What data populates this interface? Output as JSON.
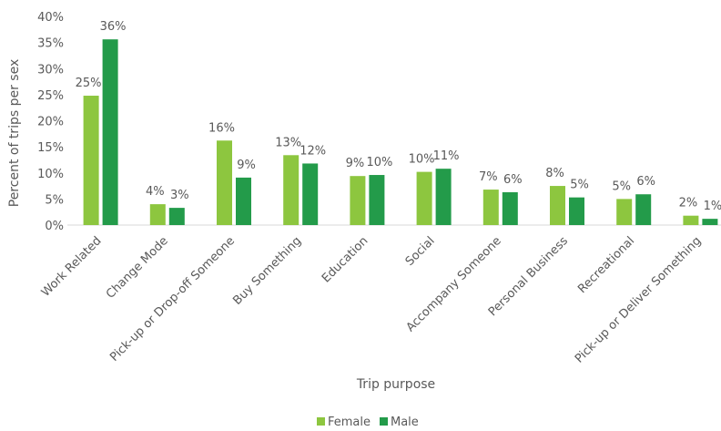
{
  "chart_data": {
    "type": "bar",
    "title": "",
    "xlabel": "Trip purpose",
    "ylabel": "Percent of trips per sex",
    "ylim": [
      0,
      40
    ],
    "yticks": [
      "0%",
      "5%",
      "10%",
      "15%",
      "20%",
      "25%",
      "30%",
      "35%",
      "40%"
    ],
    "grid": false,
    "legend_position": "bottom",
    "categories": [
      "Work Related",
      "Change Mode",
      "Pick-up or Drop-off Someone",
      "Buy Something",
      "Education",
      "Social",
      "Accompany Someone",
      "Personal Business",
      "Recreational",
      "Pick-up or Deliver Something"
    ],
    "series": [
      {
        "name": "Female",
        "color": "#8dc63f",
        "values": [
          24.8,
          4.0,
          16.2,
          13.4,
          9.4,
          10.2,
          6.8,
          7.5,
          5.0,
          1.8
        ],
        "labels": [
          "25%",
          "4%",
          "16%",
          "13%",
          "9%",
          "10%",
          "7%",
          "8%",
          "5%",
          "2%"
        ]
      },
      {
        "name": "Male",
        "color": "#239b4a",
        "values": [
          35.6,
          3.3,
          9.1,
          11.8,
          9.6,
          10.8,
          6.3,
          5.3,
          5.9,
          1.2
        ],
        "labels": [
          "36%",
          "3%",
          "9%",
          "12%",
          "10%",
          "11%",
          "6%",
          "5%",
          "6%",
          "1%"
        ]
      }
    ]
  }
}
